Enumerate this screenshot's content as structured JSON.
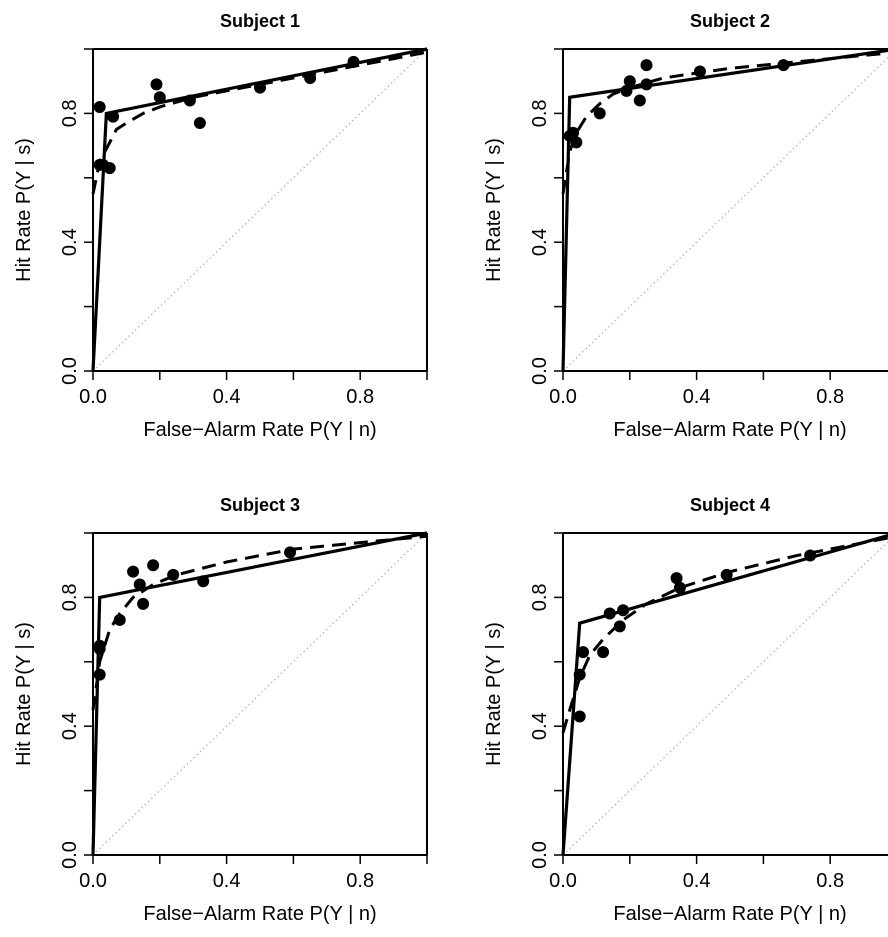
{
  "chart_data": [
    {
      "type": "scatter",
      "title": "Subject 1",
      "xlabel": "False−Alarm Rate  P(Y | n)",
      "ylabel": "Hit Rate  P(Y | s)",
      "xlim": [
        0,
        1
      ],
      "ylim": [
        0,
        1
      ],
      "x_ticks": [
        "0.0",
        "0.4",
        "0.8"
      ],
      "y_ticks": [
        "0.0",
        "0.4",
        "0.8"
      ],
      "grid": false,
      "points": [
        [
          0.02,
          0.82
        ],
        [
          0.02,
          0.64
        ],
        [
          0.03,
          0.64
        ],
        [
          0.05,
          0.63
        ],
        [
          0.06,
          0.79
        ],
        [
          0.19,
          0.89
        ],
        [
          0.2,
          0.85
        ],
        [
          0.29,
          0.84
        ],
        [
          0.32,
          0.77
        ],
        [
          0.5,
          0.88
        ],
        [
          0.65,
          0.91
        ],
        [
          0.78,
          0.96
        ]
      ],
      "solid_curve": [
        [
          0,
          0
        ],
        [
          0.04,
          0.8
        ],
        [
          1,
          1
        ]
      ],
      "dashed_curve": [
        [
          0,
          0.55
        ],
        [
          0.02,
          0.65
        ],
        [
          0.05,
          0.71
        ],
        [
          0.07,
          0.75
        ],
        [
          0.1,
          0.77
        ],
        [
          0.15,
          0.8
        ],
        [
          0.2,
          0.82
        ],
        [
          0.3,
          0.85
        ],
        [
          0.5,
          0.89
        ],
        [
          0.7,
          0.93
        ],
        [
          0.85,
          0.96
        ],
        [
          1,
          0.99
        ]
      ],
      "chance_line": [
        [
          0,
          0
        ],
        [
          1,
          1
        ]
      ]
    },
    {
      "type": "scatter",
      "title": "Subject 2",
      "xlabel": "False−Alarm Rate  P(Y | n)",
      "ylabel": "Hit Rate  P(Y | s)",
      "xlim": [
        0,
        1
      ],
      "ylim": [
        0,
        1
      ],
      "x_ticks": [
        "0.0",
        "0.4",
        "0.8"
      ],
      "y_ticks": [
        "0.0",
        "0.4",
        "0.8"
      ],
      "grid": false,
      "points": [
        [
          0.02,
          0.73
        ],
        [
          0.03,
          0.74
        ],
        [
          0.04,
          0.71
        ],
        [
          0.11,
          0.8
        ],
        [
          0.19,
          0.87
        ],
        [
          0.2,
          0.9
        ],
        [
          0.23,
          0.84
        ],
        [
          0.25,
          0.89
        ],
        [
          0.25,
          0.95
        ],
        [
          0.41,
          0.93
        ],
        [
          0.66,
          0.95
        ]
      ],
      "solid_curve": [
        [
          0,
          0
        ],
        [
          0.02,
          0.85
        ],
        [
          1,
          1
        ]
      ],
      "dashed_curve": [
        [
          0,
          0.55
        ],
        [
          0.02,
          0.68
        ],
        [
          0.04,
          0.74
        ],
        [
          0.07,
          0.79
        ],
        [
          0.11,
          0.83
        ],
        [
          0.15,
          0.86
        ],
        [
          0.2,
          0.88
        ],
        [
          0.3,
          0.91
        ],
        [
          0.5,
          0.94
        ],
        [
          0.7,
          0.96
        ],
        [
          1,
          0.99
        ]
      ],
      "chance_line": [
        [
          0,
          0
        ],
        [
          1,
          1
        ]
      ]
    },
    {
      "type": "scatter",
      "title": "Subject 3",
      "xlabel": "False−Alarm Rate  P(Y | n)",
      "ylabel": "Hit Rate  P(Y | s)",
      "xlim": [
        0,
        1
      ],
      "ylim": [
        0,
        1
      ],
      "x_ticks": [
        "0.0",
        "0.4",
        "0.8"
      ],
      "y_ticks": [
        "0.0",
        "0.4",
        "0.8"
      ],
      "grid": false,
      "points": [
        [
          0.02,
          0.65
        ],
        [
          0.02,
          0.64
        ],
        [
          0.02,
          0.56
        ],
        [
          0.08,
          0.73
        ],
        [
          0.12,
          0.88
        ],
        [
          0.14,
          0.84
        ],
        [
          0.15,
          0.78
        ],
        [
          0.18,
          0.9
        ],
        [
          0.24,
          0.87
        ],
        [
          0.33,
          0.85
        ],
        [
          0.59,
          0.94
        ]
      ],
      "solid_curve": [
        [
          0,
          0
        ],
        [
          0.02,
          0.8
        ],
        [
          1,
          1
        ]
      ],
      "dashed_curve": [
        [
          0,
          0.45
        ],
        [
          0.02,
          0.6
        ],
        [
          0.05,
          0.7
        ],
        [
          0.08,
          0.75
        ],
        [
          0.12,
          0.8
        ],
        [
          0.18,
          0.84
        ],
        [
          0.25,
          0.87
        ],
        [
          0.4,
          0.91
        ],
        [
          0.6,
          0.95
        ],
        [
          0.8,
          0.97
        ],
        [
          1,
          0.99
        ]
      ],
      "chance_line": [
        [
          0,
          0
        ],
        [
          1,
          1
        ]
      ]
    },
    {
      "type": "scatter",
      "title": "Subject 4",
      "xlabel": "False−Alarm Rate  P(Y | n)",
      "ylabel": "Hit Rate  P(Y | s)",
      "xlim": [
        0,
        1
      ],
      "ylim": [
        0,
        1
      ],
      "x_ticks": [
        "0.0",
        "0.4",
        "0.8"
      ],
      "y_ticks": [
        "0.0",
        "0.4",
        "0.8"
      ],
      "grid": false,
      "points": [
        [
          0.05,
          0.43
        ],
        [
          0.05,
          0.56
        ],
        [
          0.06,
          0.63
        ],
        [
          0.12,
          0.63
        ],
        [
          0.14,
          0.75
        ],
        [
          0.17,
          0.71
        ],
        [
          0.18,
          0.76
        ],
        [
          0.34,
          0.86
        ],
        [
          0.35,
          0.83
        ],
        [
          0.49,
          0.87
        ],
        [
          0.74,
          0.93
        ]
      ],
      "solid_curve": [
        [
          0,
          0
        ],
        [
          0.05,
          0.72
        ],
        [
          1,
          1
        ]
      ],
      "dashed_curve": [
        [
          0,
          0.38
        ],
        [
          0.02,
          0.45
        ],
        [
          0.05,
          0.55
        ],
        [
          0.08,
          0.62
        ],
        [
          0.12,
          0.67
        ],
        [
          0.18,
          0.73
        ],
        [
          0.25,
          0.78
        ],
        [
          0.35,
          0.83
        ],
        [
          0.5,
          0.88
        ],
        [
          0.7,
          0.93
        ],
        [
          0.85,
          0.96
        ],
        [
          1,
          0.99
        ]
      ],
      "chance_line": [
        [
          0,
          0
        ],
        [
          1,
          1
        ]
      ]
    }
  ]
}
